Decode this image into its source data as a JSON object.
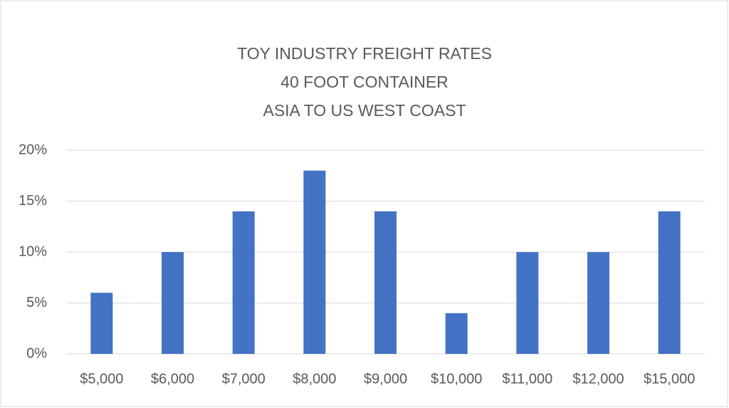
{
  "chart_data": {
    "type": "bar",
    "title": [
      "TOY INDUSTRY FREIGHT RATES",
      "40 FOOT CONTAINER",
      "ASIA TO US WEST COAST"
    ],
    "categories": [
      "$5,000",
      "$6,000",
      "$7,000",
      "$8,000",
      "$9,000",
      "$10,000",
      "$11,000",
      "$12,000",
      "$15,000"
    ],
    "values": [
      6,
      10,
      14,
      18,
      14,
      4,
      10,
      10,
      14
    ],
    "color": "#4472c4",
    "ylim": [
      0,
      20
    ],
    "yticks": [
      {
        "value": 0,
        "label": "0%"
      },
      {
        "value": 5,
        "label": "5%"
      },
      {
        "value": 10,
        "label": "10%"
      },
      {
        "value": 15,
        "label": "15%"
      },
      {
        "value": 20,
        "label": "20%"
      }
    ],
    "grid": true
  }
}
